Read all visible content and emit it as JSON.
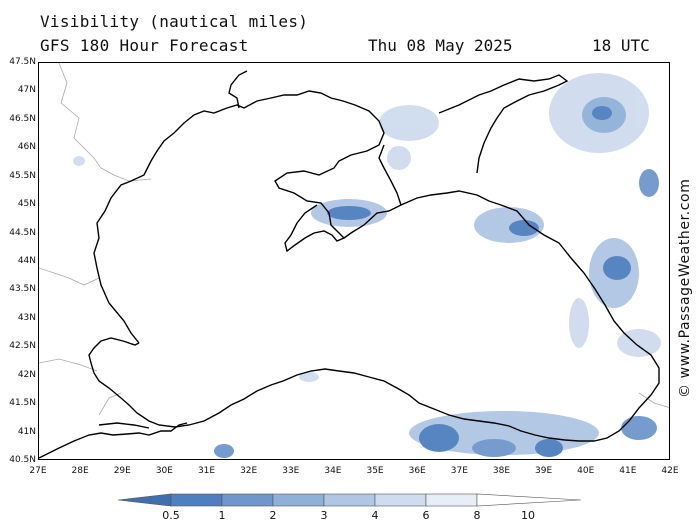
{
  "title_line1": "Visibility (nautical miles)",
  "title_line2": "GFS 180 Hour Forecast",
  "forecast_date": "Thu 08 May 2025",
  "forecast_time": "18 UTC",
  "watermark": "© www.PassageWeather.com",
  "latitude_labels": [
    "47.5N",
    "47N",
    "46.5N",
    "46N",
    "45.5N",
    "45N",
    "44.5N",
    "44N",
    "43.5N",
    "43N",
    "42.5N",
    "42N",
    "41.5N",
    "41N",
    "40.5N"
  ],
  "longitude_labels": [
    "27E",
    "28E",
    "29E",
    "30E",
    "31E",
    "32E",
    "33E",
    "34E",
    "35E",
    "36E",
    "37E",
    "38E",
    "39E",
    "40E",
    "41E",
    "42E"
  ],
  "colorbar": {
    "labels": [
      "0.5",
      "1",
      "2",
      "3",
      "4",
      "6",
      "8",
      "10"
    ],
    "colors": [
      "#3f6fae",
      "#4f7fbf",
      "#6f97cc",
      "#8fb0d9",
      "#afc6e4",
      "#cfdcef",
      "#e8eef8",
      "#ffffff"
    ]
  },
  "map": {
    "lon_range": [
      27,
      42
    ],
    "lat_range": [
      40.5,
      47.5
    ],
    "land_color": "#ffffff",
    "coast_color": "#000000",
    "border_color": "#aaaaaa"
  }
}
